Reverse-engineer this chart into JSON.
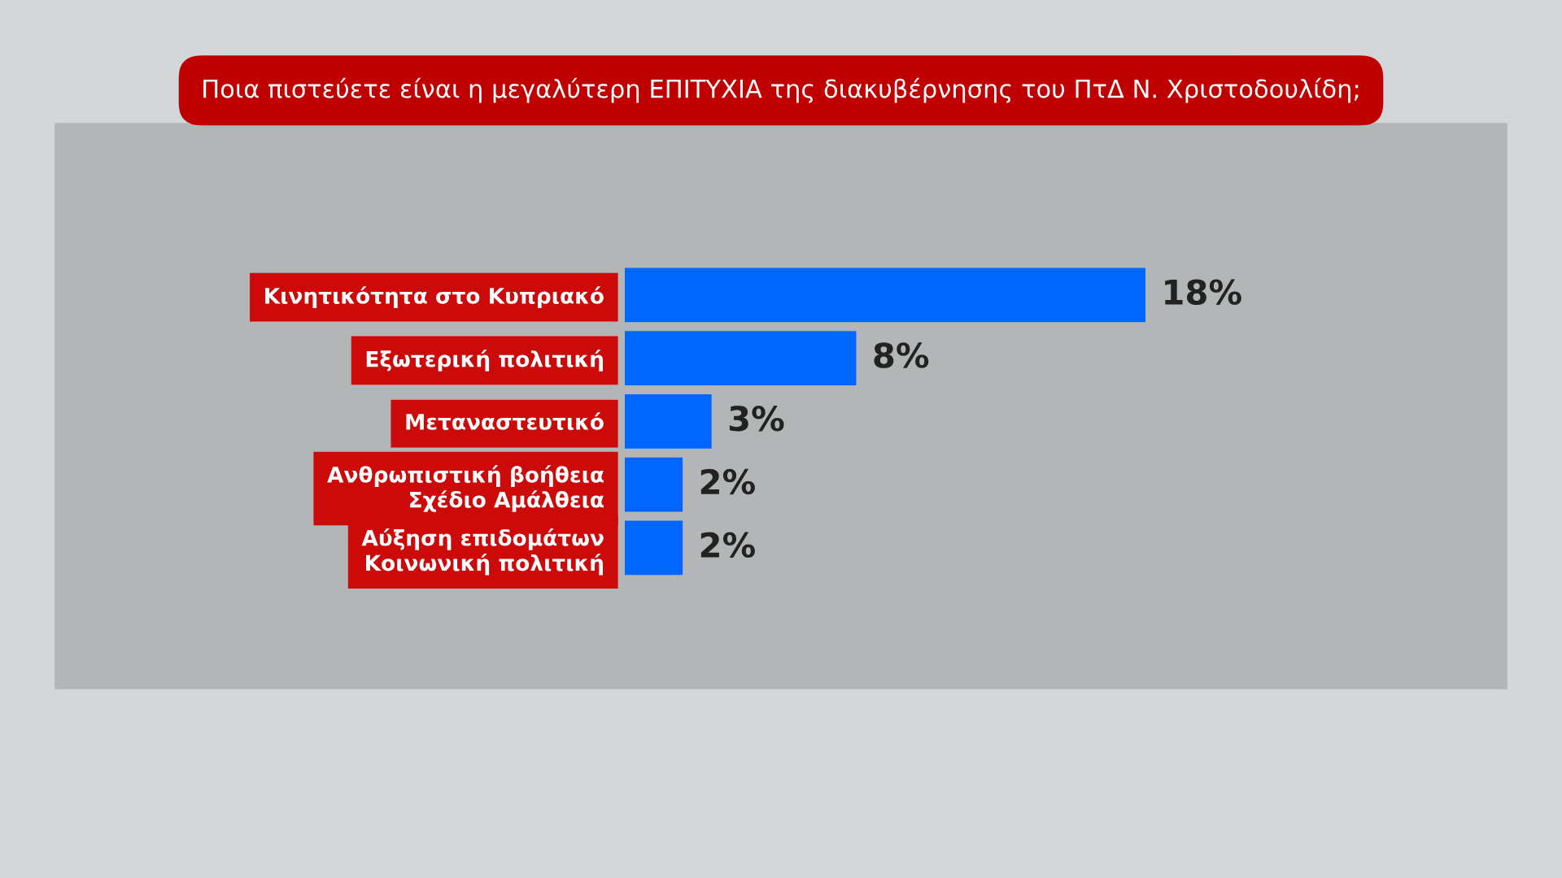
{
  "chart_data": {
    "type": "bar",
    "orientation": "horizontal",
    "title": "Ποια πιστεύετε είναι η μεγαλύτερη ΕΠΙΤΥΧΙΑ της διακυβέρνησης του ΠτΔ Ν. Χριστοδουλίδη;",
    "categories": [
      "Κινητικότητα στο Κυπριακό",
      "Εξωτερική πολιτική",
      "Μεταναστευτικό",
      "Ανθρωπιστική βοήθεια\nΣχέδιο Αμάλθεια",
      "Αύξηση επιδομάτων\nΚοινωνική πολιτική"
    ],
    "values": [
      18,
      8,
      3,
      2,
      2
    ],
    "value_labels": [
      "18%",
      "8%",
      "3%",
      "2%",
      "2%"
    ],
    "color": "#0066ff",
    "grid": false,
    "legend": false
  }
}
